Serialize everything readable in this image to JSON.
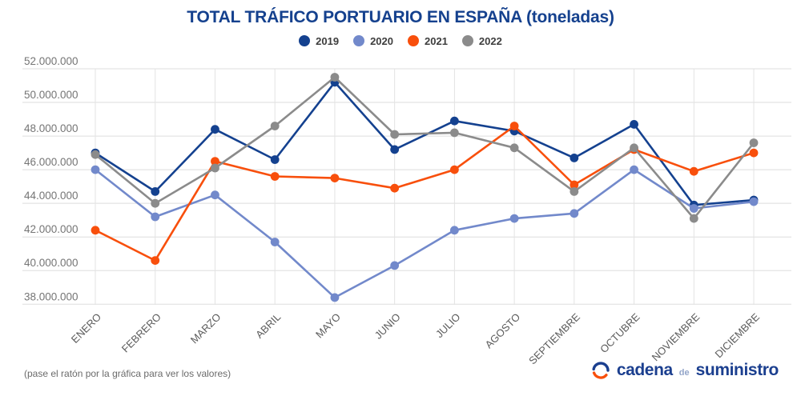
{
  "chart_data": {
    "type": "line",
    "title": "TOTAL TRÁFICO PORTUARIO EN ESPAÑA (toneladas)",
    "xlabel": "",
    "ylabel": "",
    "unit": "toneladas",
    "value_scale": 1000000,
    "grid": true,
    "legend_position": "top-center",
    "ylim_millions": [
      38,
      52
    ],
    "y_tick_step_millions": 2,
    "categories": [
      "ENERO",
      "FEBRERO",
      "MARZO",
      "ABRIL",
      "MAYO",
      "JUNIO",
      "JULIO",
      "AGOSTO",
      "SEPTIEMBRE",
      "OCTUBRE",
      "NOVIEMBRE",
      "DICIEMBRE"
    ],
    "y_ticks": [
      {
        "value_millions": 52,
        "label": "52.000.000"
      },
      {
        "value_millions": 50,
        "label": "50.000.000"
      },
      {
        "value_millions": 48,
        "label": "48.000.000"
      },
      {
        "value_millions": 46,
        "label": "46.000.000"
      },
      {
        "value_millions": 44,
        "label": "44.000.000"
      },
      {
        "value_millions": 42,
        "label": "42.000.000"
      },
      {
        "value_millions": 40,
        "label": "40.000.000"
      },
      {
        "value_millions": 38,
        "label": "38.000.000"
      }
    ],
    "series": [
      {
        "name": "2019",
        "color": "#14418f",
        "values_millions": [
          47.0,
          44.7,
          48.4,
          46.6,
          51.2,
          47.2,
          48.9,
          48.3,
          46.7,
          48.7,
          43.9,
          44.2
        ]
      },
      {
        "name": "2020",
        "color": "#7289cb",
        "values_millions": [
          46.0,
          43.2,
          44.5,
          41.7,
          38.4,
          40.3,
          42.4,
          43.1,
          43.4,
          46.0,
          43.7,
          44.1
        ]
      },
      {
        "name": "2021",
        "color": "#f84f0c",
        "values_millions": [
          42.4,
          40.6,
          46.5,
          45.6,
          45.5,
          44.9,
          46.0,
          48.6,
          45.1,
          47.2,
          45.9,
          47.0
        ]
      },
      {
        "name": "2022",
        "color": "#8b8b8b",
        "values_millions": [
          46.9,
          44.0,
          46.1,
          48.6,
          51.5,
          48.1,
          48.2,
          47.3,
          44.7,
          47.3,
          43.1,
          47.6
        ]
      }
    ]
  },
  "footer": {
    "hint": "(pase el ratón por la gráfica para ver los valores)",
    "logo": {
      "part1": "cadena",
      "part2": "de",
      "part3": "suministro"
    }
  },
  "colors": {
    "title": "#15418e",
    "gridline": "#dedede",
    "month_gridline": "#e3e3e3",
    "y_tick_label": "#757575",
    "x_tick_label": "#5c5c5c",
    "hint_text": "#6b6b6b",
    "logo_blue": "#1b3f8f",
    "logo_orange": "#f84f0c"
  }
}
